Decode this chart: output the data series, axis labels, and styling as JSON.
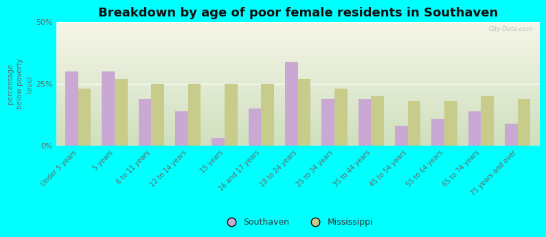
{
  "title": "Breakdown by age of poor female residents in Southaven",
  "ylabel": "percentage\nbelow poverty\nlevel",
  "categories": [
    "Under 5 years",
    "5 years",
    "6 to 11 years",
    "12 to 14 years",
    "15 years",
    "16 and 17 years",
    "18 to 24 years",
    "25 to 34 years",
    "35 to 44 years",
    "45 to 54 years",
    "55 to 64 years",
    "65 to 74 years",
    "75 years and over"
  ],
  "southaven_values": [
    30,
    30,
    19,
    14,
    3,
    15,
    34,
    19,
    19,
    8,
    11,
    14,
    9
  ],
  "mississippi_values": [
    23,
    27,
    25,
    25,
    25,
    25,
    27,
    23,
    20,
    18,
    18,
    20,
    19
  ],
  "southaven_color": "#c9a8d4",
  "mississippi_color": "#c8cc8a",
  "figure_bg": "#00ffff",
  "plot_bg_top": "#f5f5e8",
  "plot_bg_bottom": "#cfe0be",
  "ylim": [
    0,
    50
  ],
  "yticks": [
    0,
    25,
    50
  ],
  "ytick_labels": [
    "0%",
    "25%",
    "50%"
  ],
  "bar_width": 0.35,
  "title_fontsize": 13,
  "ylabel_fontsize": 7.5,
  "tick_fontsize": 7,
  "legend_fontsize": 9,
  "watermark": "City-Data.com"
}
